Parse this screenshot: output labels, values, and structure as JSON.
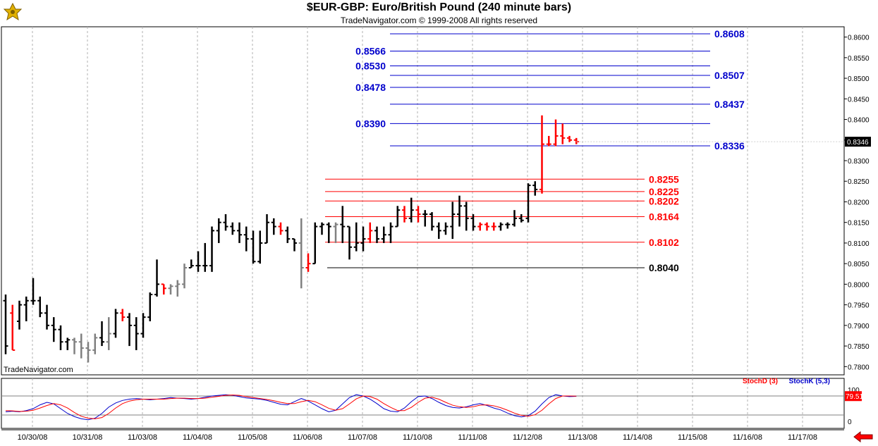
{
  "header": {
    "title": "$EUR-GBP:  Euro/British Pound  (240 minute bars)",
    "subtitle": "TradeNavigator.com © 1999-2008 All rights reserved",
    "watermark": "TradeNavigator.com",
    "logo_icon": "trade-navigator-logo-icon",
    "nav_icon": "red-left-arrow-icon"
  },
  "colors": {
    "up_bar": "#000000",
    "down_bar": "#ff0000",
    "neutral_bar": "#808080",
    "projection_blue": "#0000cc",
    "retracement_red": "#ff0000",
    "stochd": "#ff0000",
    "stochk": "#0000cc",
    "last_price_bg": "#000000"
  },
  "chart_data": [
    {
      "type": "ohlc",
      "y_ticks": [
        "0.8600",
        "0.8550",
        "0.8500",
        "0.8450",
        "0.8400",
        "0.8350",
        "0.8300",
        "0.8250",
        "0.8200",
        "0.8150",
        "0.8100",
        "0.8050",
        "0.8000",
        "0.7950",
        "0.7900",
        "0.7850",
        "0.7800"
      ],
      "ylim": [
        0.778,
        0.8625
      ],
      "x_ticks": [
        "10/30/08",
        "10/31/08",
        "11/03/08",
        "11/04/08",
        "11/05/08",
        "11/06/08",
        "11/07/08",
        "11/10/08",
        "11/11/08",
        "11/12/08",
        "11/13/08",
        "11/14/08",
        "11/15/08",
        "11/16/08",
        "11/17/08"
      ],
      "last_price": "0.8346",
      "bars": [
        [
          0.796,
          0.7975,
          0.783,
          0.785
        ],
        [
          0.793,
          0.795,
          0.784,
          0.784
        ],
        [
          0.791,
          0.796,
          0.789,
          0.795
        ],
        [
          0.795,
          0.797,
          0.791,
          0.796
        ],
        [
          0.796,
          0.8015,
          0.795,
          0.796
        ],
        [
          0.796,
          0.797,
          0.792,
          0.793
        ],
        [
          0.793,
          0.795,
          0.789,
          0.79
        ],
        [
          0.79,
          0.792,
          0.786,
          0.789
        ],
        [
          0.789,
          0.79,
          0.784,
          0.786
        ],
        [
          0.786,
          0.787,
          0.784,
          0.7865
        ],
        [
          0.7865,
          0.787,
          0.783,
          0.786
        ],
        [
          0.786,
          0.788,
          0.782,
          0.7845
        ],
        [
          0.7845,
          0.786,
          0.781,
          0.784
        ],
        [
          0.784,
          0.788,
          0.783,
          0.787
        ],
        [
          0.787,
          0.791,
          0.785,
          0.786
        ],
        [
          0.786,
          0.792,
          0.784,
          0.788
        ],
        [
          0.788,
          0.794,
          0.787,
          0.793
        ],
        [
          0.793,
          0.794,
          0.791,
          0.792
        ],
        [
          0.792,
          0.793,
          0.785,
          0.79
        ],
        [
          0.79,
          0.792,
          0.784,
          0.788
        ],
        [
          0.788,
          0.793,
          0.787,
          0.792
        ],
        [
          0.792,
          0.798,
          0.791,
          0.7975
        ],
        [
          0.7975,
          0.806,
          0.797,
          0.8
        ],
        [
          0.8,
          0.8,
          0.7975,
          0.799
        ],
        [
          0.799,
          0.8,
          0.7975,
          0.7995
        ],
        [
          0.7995,
          0.801,
          0.797,
          0.8
        ],
        [
          0.8,
          0.805,
          0.799,
          0.804
        ],
        [
          0.804,
          0.806,
          0.804,
          0.8045
        ],
        [
          0.8045,
          0.808,
          0.803,
          0.8045
        ],
        [
          0.8045,
          0.81,
          0.803,
          0.8045
        ],
        [
          0.8045,
          0.814,
          0.803,
          0.813
        ],
        [
          0.813,
          0.816,
          0.81,
          0.815
        ],
        [
          0.815,
          0.817,
          0.813,
          0.814
        ],
        [
          0.814,
          0.815,
          0.812,
          0.813
        ],
        [
          0.813,
          0.815,
          0.81,
          0.812
        ],
        [
          0.812,
          0.814,
          0.808,
          0.811
        ],
        [
          0.811,
          0.813,
          0.805,
          0.8055
        ],
        [
          0.8055,
          0.813,
          0.805,
          0.81
        ],
        [
          0.81,
          0.817,
          0.81,
          0.815
        ],
        [
          0.815,
          0.816,
          0.812,
          0.814
        ],
        [
          0.814,
          0.815,
          0.812,
          0.813
        ],
        [
          0.813,
          0.814,
          0.81,
          0.811
        ],
        [
          0.811,
          0.811,
          0.808,
          0.81
        ],
        [
          0.81,
          0.816,
          0.799,
          0.804
        ],
        [
          0.804,
          0.8075,
          0.803,
          0.805
        ],
        [
          0.805,
          0.815,
          0.805,
          0.814
        ],
        [
          0.814,
          0.815,
          0.812,
          0.8145
        ],
        [
          0.8145,
          0.815,
          0.81,
          0.814
        ],
        [
          0.814,
          0.815,
          0.81,
          0.8145
        ],
        [
          0.8145,
          0.819,
          0.81,
          0.814
        ],
        [
          0.814,
          0.814,
          0.806,
          0.809
        ],
        [
          0.809,
          0.815,
          0.808,
          0.81
        ],
        [
          0.81,
          0.814,
          0.808,
          0.811
        ],
        [
          0.811,
          0.815,
          0.81,
          0.813
        ],
        [
          0.813,
          0.814,
          0.81,
          0.811
        ],
        [
          0.811,
          0.814,
          0.81,
          0.812
        ],
        [
          0.812,
          0.815,
          0.81,
          0.814
        ],
        [
          0.814,
          0.819,
          0.814,
          0.818
        ],
        [
          0.818,
          0.819,
          0.815,
          0.816
        ],
        [
          0.816,
          0.821,
          0.815,
          0.818
        ],
        [
          0.818,
          0.819,
          0.815,
          0.817
        ],
        [
          0.817,
          0.818,
          0.814,
          0.817
        ],
        [
          0.817,
          0.8175,
          0.813,
          0.814
        ],
        [
          0.814,
          0.815,
          0.811,
          0.813
        ],
        [
          0.813,
          0.815,
          0.812,
          0.814
        ],
        [
          0.814,
          0.82,
          0.811,
          0.817
        ],
        [
          0.817,
          0.8215,
          0.814,
          0.819
        ],
        [
          0.819,
          0.82,
          0.813,
          0.816
        ],
        [
          0.816,
          0.817,
          0.813,
          0.814
        ],
        [
          0.814,
          0.815,
          0.813,
          0.8145
        ],
        [
          0.8145,
          0.815,
          0.813,
          0.814
        ],
        [
          0.814,
          0.815,
          0.813,
          0.814
        ],
        [
          0.814,
          0.815,
          0.813,
          0.8145
        ],
        [
          0.8145,
          0.815,
          0.8135,
          0.8145
        ],
        [
          0.8145,
          0.818,
          0.814,
          0.816
        ],
        [
          0.816,
          0.817,
          0.815,
          0.8155
        ],
        [
          0.816,
          0.8245,
          0.815,
          0.824
        ],
        [
          0.824,
          0.825,
          0.8215,
          0.823
        ],
        [
          0.823,
          0.841,
          0.822,
          0.834
        ],
        [
          0.834,
          0.836,
          0.8335,
          0.834
        ],
        [
          0.834,
          0.84,
          0.8335,
          0.836
        ],
        [
          0.836,
          0.839,
          0.834,
          0.8355
        ],
        [
          0.8355,
          0.836,
          0.8345,
          0.835
        ],
        [
          0.835,
          0.8355,
          0.834,
          0.8346
        ]
      ],
      "bar_colors": [
        "k",
        "r",
        "k",
        "k",
        "k",
        "k",
        "k",
        "k",
        "k",
        "k",
        "g",
        "g",
        "g",
        "g",
        "k",
        "g",
        "k",
        "r",
        "k",
        "k",
        "k",
        "k",
        "k",
        "r",
        "g",
        "g",
        "g",
        "k",
        "k",
        "k",
        "k",
        "k",
        "k",
        "k",
        "k",
        "k",
        "k",
        "k",
        "k",
        "k",
        "r",
        "k",
        "k",
        "g",
        "r",
        "k",
        "k",
        "k",
        "g",
        "k",
        "k",
        "k",
        "k",
        "r",
        "k",
        "k",
        "k",
        "k",
        "r",
        "k",
        "r",
        "k",
        "k",
        "k",
        "k",
        "k",
        "k",
        "k",
        "k",
        "r",
        "r",
        "r",
        "k",
        "k",
        "k",
        "k",
        "k",
        "k",
        "r",
        "r",
        "r",
        "r",
        "r",
        "r"
      ],
      "levels": [
        {
          "label": "0.8608",
          "value": 0.8608,
          "color": "blue",
          "label_side": "right"
        },
        {
          "label": "0.8566",
          "value": 0.8566,
          "color": "blue",
          "label_side": "left"
        },
        {
          "label": "0.8530",
          "value": 0.853,
          "color": "blue",
          "label_side": "left"
        },
        {
          "label": "0.8507",
          "value": 0.8507,
          "color": "blue",
          "label_side": "right"
        },
        {
          "label": "0.8478",
          "value": 0.8478,
          "color": "blue",
          "label_side": "left"
        },
        {
          "label": "0.8437",
          "value": 0.8437,
          "color": "blue",
          "label_side": "right"
        },
        {
          "label": "0.8390",
          "value": 0.839,
          "color": "blue",
          "label_side": "left"
        },
        {
          "label": "0.8336",
          "value": 0.8336,
          "color": "blue",
          "label_side": "right"
        },
        {
          "label": "0.8255",
          "value": 0.8255,
          "color": "red",
          "label_side": "right"
        },
        {
          "label": "0.8225",
          "value": 0.8225,
          "color": "red",
          "label_side": "right"
        },
        {
          "label": "0.8202",
          "value": 0.8202,
          "color": "red",
          "label_side": "right"
        },
        {
          "label": "0.8164",
          "value": 0.8164,
          "color": "red",
          "label_side": "right"
        },
        {
          "label": "0.8102",
          "value": 0.8102,
          "color": "red",
          "label_side": "right"
        },
        {
          "label": "0.8040",
          "value": 0.804,
          "color": "black",
          "label_side": "right"
        }
      ]
    },
    {
      "type": "line",
      "name": "stochastic",
      "y_ticks": [
        "100",
        "0"
      ],
      "ylim": [
        0,
        100
      ],
      "legend": [
        {
          "name": "StochD (3)",
          "color": "red"
        },
        {
          "name": "StochK (5,3)",
          "color": "blue"
        }
      ],
      "last_value": "79.51",
      "stochk": [
        30,
        32,
        30,
        34,
        40,
        52,
        60,
        55,
        40,
        25,
        15,
        8,
        5,
        10,
        25,
        45,
        58,
        66,
        70,
        72,
        70,
        68,
        70,
        72,
        75,
        73,
        72,
        70,
        72,
        76,
        80,
        82,
        84,
        82,
        78,
        74,
        72,
        70,
        66,
        60,
        54,
        52,
        62,
        72,
        64,
        52,
        40,
        30,
        35,
        55,
        75,
        84,
        80,
        70,
        56,
        40,
        32,
        30,
        42,
        62,
        78,
        80,
        72,
        60,
        50,
        44,
        42,
        46,
        52,
        56,
        50,
        42,
        36,
        26,
        18,
        14,
        18,
        32,
        55,
        75,
        84,
        80,
        78,
        79
      ],
      "stochd": [
        34,
        33,
        31,
        32,
        35,
        42,
        50,
        56,
        52,
        42,
        28,
        16,
        10,
        8,
        12,
        25,
        42,
        56,
        64,
        68,
        70,
        70,
        70,
        70,
        72,
        73,
        73,
        72,
        72,
        73,
        76,
        79,
        82,
        83,
        82,
        78,
        75,
        72,
        69,
        65,
        60,
        56,
        56,
        62,
        66,
        62,
        52,
        41,
        35,
        40,
        55,
        71,
        80,
        78,
        70,
        56,
        44,
        34,
        34,
        44,
        60,
        73,
        76,
        70,
        60,
        51,
        46,
        44,
        46,
        51,
        52,
        49,
        43,
        35,
        26,
        19,
        16,
        21,
        35,
        55,
        72,
        80,
        80,
        79.51
      ]
    }
  ]
}
